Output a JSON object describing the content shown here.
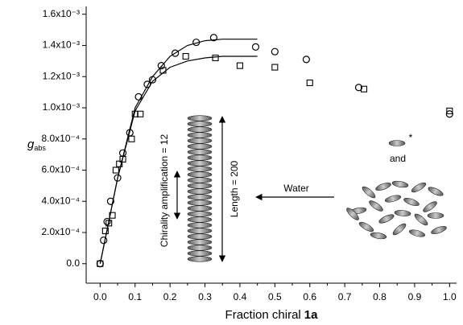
{
  "chart_data": {
    "type": "scatter",
    "xlabel": "Fraction chiral",
    "xlabel_bold": "1a",
    "ylabel": "g",
    "ylabel_subscript": "abs",
    "xlim": [
      -0.04,
      1.02
    ],
    "ylim": [
      -0.000125,
      0.00165
    ],
    "xticks": [
      {
        "value": 0,
        "label": "0.0"
      },
      0.1,
      0.2,
      0.3,
      0.4,
      0.5,
      0.6,
      0.7,
      0.8,
      0.9,
      {
        "value": 1,
        "label": "1.0"
      }
    ],
    "yticks": [
      {
        "value": 0,
        "label": "0.0"
      },
      {
        "value": 0.0002,
        "label": "2.0x10⁻⁴"
      },
      {
        "value": 0.0004,
        "label": "4.0x10⁻⁴"
      },
      {
        "value": 0.0006,
        "label": "6.0x10⁻⁴"
      },
      {
        "value": 0.0008,
        "label": "8.0x10⁻⁴"
      },
      {
        "value": 0.001,
        "label": "1.0x10⁻³"
      },
      {
        "value": 0.0012,
        "label": "1.2x10⁻³"
      },
      {
        "value": 0.0014,
        "label": "1.4x10⁻³"
      },
      {
        "value": 0.0016,
        "label": "1.6x10⁻³"
      }
    ],
    "series": [
      {
        "marker": "circle",
        "color": "#000000",
        "x": [
          0,
          0.01,
          0.02,
          0.03,
          0.05,
          0.065,
          0.085,
          0.11,
          0.135,
          0.15,
          0.175,
          0.215,
          0.275,
          0.325,
          0.445,
          0.5,
          0.59,
          0.74,
          1.0
        ],
        "values": [
          0,
          0.00015,
          0.00027,
          0.0004,
          0.00055,
          0.00071,
          0.00084,
          0.00107,
          0.00115,
          0.00118,
          0.00127,
          0.00135,
          0.00142,
          0.00145,
          0.00139,
          0.00136,
          0.00131,
          0.00113,
          0.00096
        ]
      },
      {
        "marker": "square",
        "color": "#000000",
        "x": [
          0,
          0.015,
          0.025,
          0.035,
          0.045,
          0.055,
          0.065,
          0.09,
          0.1,
          0.115,
          0.18,
          0.245,
          0.33,
          0.4,
          0.5,
          0.6,
          0.755,
          1.0
        ],
        "values": [
          0,
          0.00021,
          0.00026,
          0.00031,
          0.0006,
          0.00064,
          0.00067,
          0.0008,
          0.00096,
          0.00096,
          0.00124,
          0.00133,
          0.00132,
          0.00127,
          0.00126,
          0.00116,
          0.00112,
          0.00098
        ]
      },
      {
        "marker": "line",
        "color": "#000000",
        "x": [
          0,
          0.05,
          0.1,
          0.15,
          0.2,
          0.25,
          0.3,
          0.35,
          0.4,
          0.45
        ],
        "values": [
          0,
          0.00055,
          0.001,
          0.0012,
          0.00133,
          0.0014,
          0.00143,
          0.00144,
          0.00144,
          0.00144
        ]
      },
      {
        "marker": "line",
        "color": "#000000",
        "x": [
          0,
          0.05,
          0.1,
          0.15,
          0.2,
          0.25,
          0.3,
          0.35,
          0.4,
          0.45
        ],
        "values": [
          0,
          0.00055,
          0.00098,
          0.00117,
          0.00126,
          0.0013,
          0.00132,
          0.00133,
          0.00133,
          0.00133
        ]
      }
    ],
    "annotations": [
      "Chirality amplification = 12",
      "Length = 200",
      "Water",
      "and",
      "*"
    ]
  }
}
